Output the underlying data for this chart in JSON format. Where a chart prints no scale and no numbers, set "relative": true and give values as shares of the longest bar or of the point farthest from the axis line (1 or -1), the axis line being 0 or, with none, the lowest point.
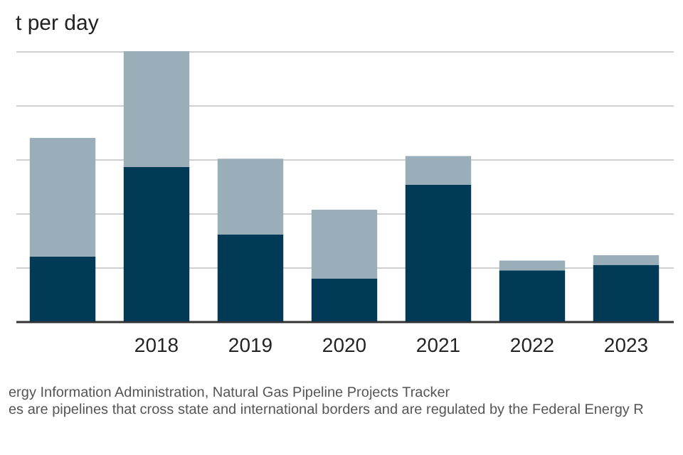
{
  "chart_data": {
    "type": "bar",
    "title": "t per day",
    "categories": [
      null,
      "2018",
      "2019",
      "2020",
      "2021",
      "2022",
      "2023"
    ],
    "stacked": true,
    "relative": true,
    "grid": "y",
    "series": [
      {
        "color": "#003a57",
        "values": [
          0.24,
          0.571,
          0.321,
          0.158,
          0.505,
          0.189,
          0.209
        ]
      },
      {
        "color": "#9aaeba",
        "values": [
          0.439,
          0.429,
          0.281,
          0.255,
          0.107,
          0.036,
          0.036
        ]
      }
    ],
    "annotations": [
      "ergy Information Administration, Natural Gas Pipeline Projects Tracker",
      "es are pipelines that cross state and international borders and are regulated by the Federal Energy R"
    ]
  }
}
